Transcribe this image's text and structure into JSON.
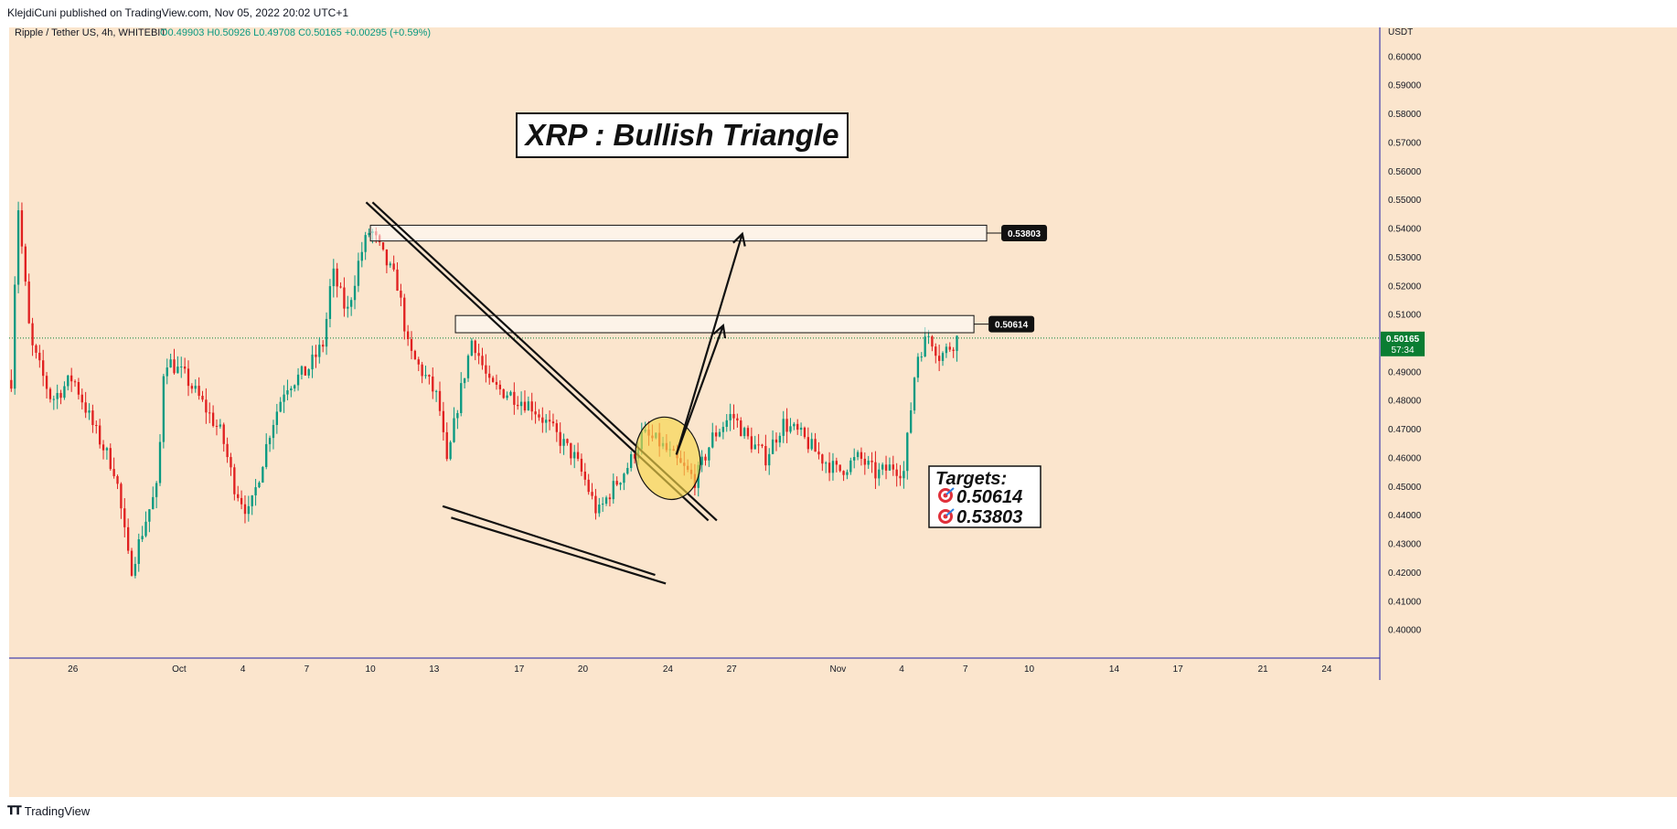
{
  "publish_info": "KlejdiCuni published on TradingView.com, Nov 05, 2022 20:02 UTC+1",
  "footer": {
    "logo_icon": "tradingview-logo-icon",
    "brand": "TradingView"
  },
  "colors": {
    "background": "#fbe5cd",
    "up": "#089981",
    "down": "#e02020",
    "price_label_bg": "#0a7d32",
    "axis_border": "#1a1aa6"
  },
  "chart_data": {
    "type": "candlestick",
    "symbol_header": {
      "name": "Ripple / Tether US, 4h, WHITEBIT",
      "ohlc": "O0.49903 H0.50926 L0.49708 C0.50165 +0.00295 (+0.59%)"
    },
    "title": "XRP : Bullish Triangle",
    "currency": "USDT",
    "ylim": [
      0.39,
      0.61
    ],
    "y_ticks": [
      "0.60000",
      "0.59000",
      "0.58000",
      "0.57000",
      "0.56000",
      "0.55000",
      "0.54000",
      "0.53000",
      "0.52000",
      "0.51000",
      "0.50000",
      "0.49000",
      "0.48000",
      "0.47000",
      "0.46000",
      "0.45000",
      "0.44000",
      "0.43000",
      "0.42000",
      "0.41000",
      "0.40000"
    ],
    "x_ticks": [
      {
        "label": "26",
        "day": -5
      },
      {
        "label": "Oct",
        "day": 0
      },
      {
        "label": "4",
        "day": 3
      },
      {
        "label": "7",
        "day": 6
      },
      {
        "label": "10",
        "day": 9
      },
      {
        "label": "13",
        "day": 12
      },
      {
        "label": "17",
        "day": 16
      },
      {
        "label": "20",
        "day": 19
      },
      {
        "label": "24",
        "day": 23
      },
      {
        "label": "27",
        "day": 26
      },
      {
        "label": "Nov",
        "day": 31
      },
      {
        "label": "4",
        "day": 34
      },
      {
        "label": "7",
        "day": 37
      },
      {
        "label": "10",
        "day": 40
      },
      {
        "label": "14",
        "day": 44
      },
      {
        "label": "17",
        "day": 47
      },
      {
        "label": "21",
        "day": 51
      },
      {
        "label": "24",
        "day": 54
      }
    ],
    "xlim_days": [
      -8.0,
      56.5
    ],
    "last_price": "0.50165",
    "countdown": "57:34",
    "key_points": [
      {
        "day": -7.9,
        "price": 0.487
      },
      {
        "day": -7.6,
        "price": 0.55
      },
      {
        "day": -7.0,
        "price": 0.5
      },
      {
        "day": -6.0,
        "price": 0.48
      },
      {
        "day": -5.0,
        "price": 0.488
      },
      {
        "day": -4.0,
        "price": 0.47
      },
      {
        "day": -3.0,
        "price": 0.455
      },
      {
        "day": -2.3,
        "price": 0.42
      },
      {
        "day": -1.5,
        "price": 0.44
      },
      {
        "day": -1.0,
        "price": 0.45
      },
      {
        "day": -0.7,
        "price": 0.495
      },
      {
        "day": 0.3,
        "price": 0.488
      },
      {
        "day": 1.0,
        "price": 0.48
      },
      {
        "day": 2.0,
        "price": 0.468
      },
      {
        "day": 2.6,
        "price": 0.45
      },
      {
        "day": 3.3,
        "price": 0.44
      },
      {
        "day": 4.3,
        "price": 0.47
      },
      {
        "day": 5.0,
        "price": 0.485
      },
      {
        "day": 6.0,
        "price": 0.49
      },
      {
        "day": 6.8,
        "price": 0.5
      },
      {
        "day": 7.2,
        "price": 0.525
      },
      {
        "day": 7.9,
        "price": 0.51
      },
      {
        "day": 8.5,
        "price": 0.53
      },
      {
        "day": 9.0,
        "price": 0.54
      },
      {
        "day": 9.6,
        "price": 0.53
      },
      {
        "day": 10.3,
        "price": 0.52
      },
      {
        "day": 10.8,
        "price": 0.497
      },
      {
        "day": 11.6,
        "price": 0.488
      },
      {
        "day": 12.2,
        "price": 0.48
      },
      {
        "day": 12.6,
        "price": 0.457
      },
      {
        "day": 13.1,
        "price": 0.478
      },
      {
        "day": 13.8,
        "price": 0.502
      },
      {
        "day": 14.6,
        "price": 0.485
      },
      {
        "day": 15.6,
        "price": 0.482
      },
      {
        "day": 16.6,
        "price": 0.478
      },
      {
        "day": 17.5,
        "price": 0.47
      },
      {
        "day": 18.6,
        "price": 0.46
      },
      {
        "day": 19.1,
        "price": 0.452
      },
      {
        "day": 19.7,
        "price": 0.44
      },
      {
        "day": 20.2,
        "price": 0.447
      },
      {
        "day": 21.2,
        "price": 0.458
      },
      {
        "day": 21.8,
        "price": 0.468
      },
      {
        "day": 22.6,
        "price": 0.465
      },
      {
        "day": 23.6,
        "price": 0.457
      },
      {
        "day": 24.3,
        "price": 0.452
      },
      {
        "day": 25.1,
        "price": 0.467
      },
      {
        "day": 26.0,
        "price": 0.475
      },
      {
        "day": 26.8,
        "price": 0.466
      },
      {
        "day": 27.6,
        "price": 0.46
      },
      {
        "day": 28.4,
        "price": 0.472
      },
      {
        "day": 29.2,
        "price": 0.468
      },
      {
        "day": 30.2,
        "price": 0.46
      },
      {
        "day": 31.0,
        "price": 0.455
      },
      {
        "day": 32.0,
        "price": 0.46
      },
      {
        "day": 32.8,
        "price": 0.454
      },
      {
        "day": 33.6,
        "price": 0.457
      },
      {
        "day": 34.1,
        "price": 0.455
      },
      {
        "day": 34.4,
        "price": 0.475
      },
      {
        "day": 34.7,
        "price": 0.495
      },
      {
        "day": 35.3,
        "price": 0.503
      },
      {
        "day": 35.8,
        "price": 0.495
      },
      {
        "day": 36.3,
        "price": 0.499
      },
      {
        "day": 36.6,
        "price": 0.5015
      }
    ],
    "annotations": {
      "zones": [
        {
          "from_day": 9.0,
          "to_day": 38.0,
          "low": 0.5355,
          "high": 0.541,
          "label": "0.53803"
        },
        {
          "from_day": 13.0,
          "to_day": 37.4,
          "low": 0.5035,
          "high": 0.5095,
          "label": "0.50614"
        }
      ],
      "lines": [
        {
          "from": [
            8.8,
            0.549
          ],
          "to": [
            24.9,
            0.438
          ]
        },
        {
          "from": [
            9.1,
            0.549
          ],
          "to": [
            25.3,
            0.438
          ]
        },
        {
          "from": [
            12.4,
            0.443
          ],
          "to": [
            22.4,
            0.419
          ]
        },
        {
          "from": [
            12.8,
            0.439
          ],
          "to": [
            22.9,
            0.416
          ]
        }
      ],
      "arrows": [
        {
          "from": [
            23.4,
            0.461
          ],
          "to": [
            26.5,
            0.538
          ]
        },
        {
          "from": [
            23.4,
            0.461
          ],
          "to": [
            25.6,
            0.506
          ]
        }
      ],
      "ellipse": {
        "center_day": 23.0,
        "center_price": 0.4597,
        "r_days": 1.5,
        "r_price": 0.0145
      },
      "targets": {
        "title": "Targets:",
        "items": [
          "0.50614",
          "0.53803"
        ],
        "icon": "target-dart-icon"
      }
    }
  }
}
